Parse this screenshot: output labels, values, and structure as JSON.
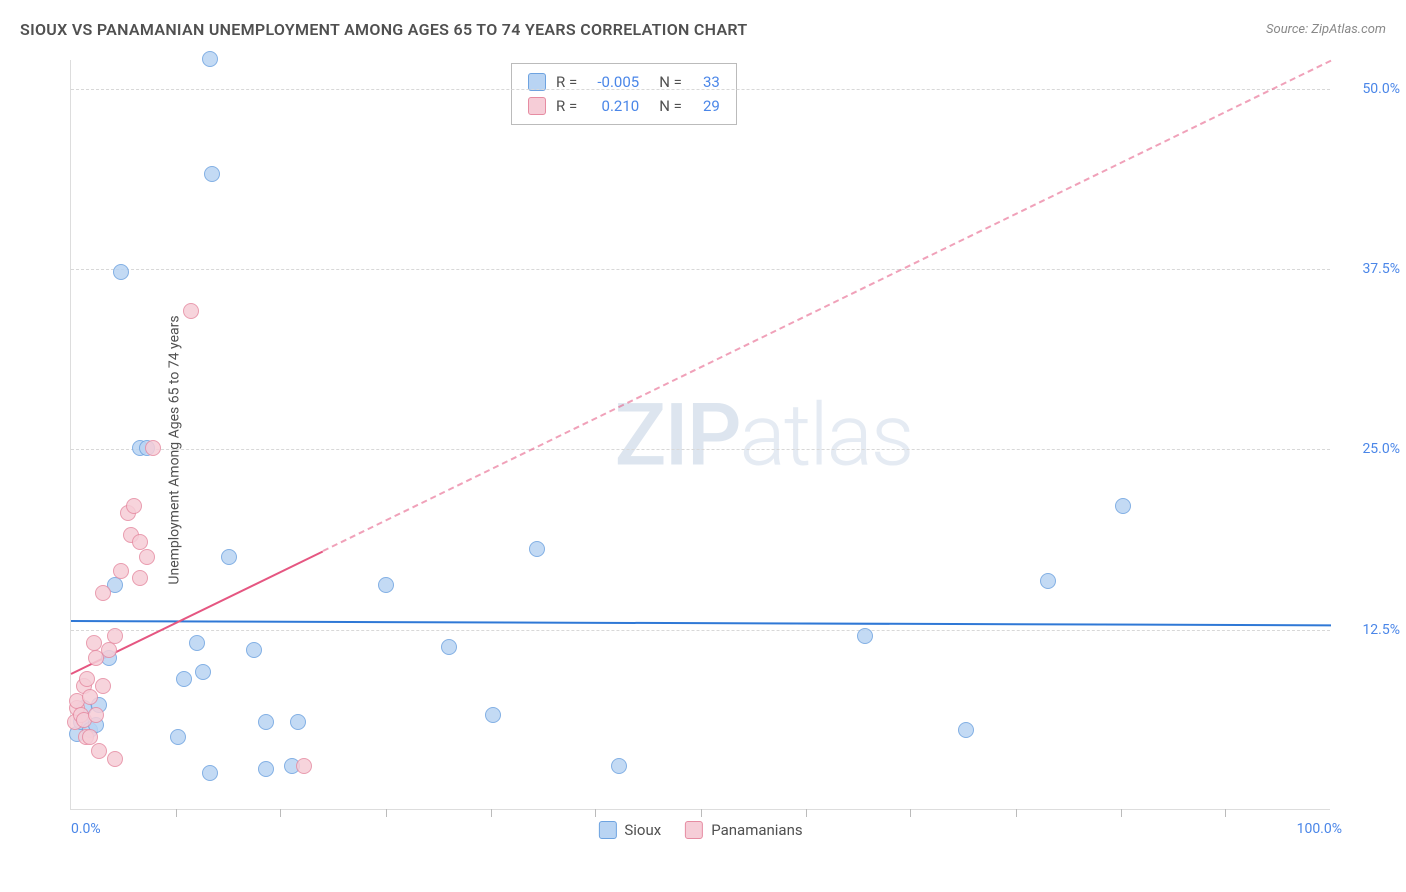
{
  "title": "SIOUX VS PANAMANIAN UNEMPLOYMENT AMONG AGES 65 TO 74 YEARS CORRELATION CHART",
  "source": "Source: ZipAtlas.com",
  "watermark_bold": "ZIP",
  "watermark_light": "atlas",
  "chart": {
    "type": "scatter",
    "ylabel": "Unemployment Among Ages 65 to 74 years",
    "xlim": [
      0,
      100
    ],
    "ylim": [
      0,
      52
    ],
    "y_ticks": [
      {
        "value": 12.5,
        "label": "12.5%"
      },
      {
        "value": 25.0,
        "label": "25.0%"
      },
      {
        "value": 37.5,
        "label": "37.5%"
      },
      {
        "value": 50.0,
        "label": "50.0%"
      }
    ],
    "x_ticks": [
      8.3,
      16.6,
      25,
      33.3,
      41.6,
      50,
      58.3,
      66.6,
      75,
      83.3,
      91.6
    ],
    "x_labels": [
      {
        "value": 0,
        "label": "0.0%",
        "anchor": "left"
      },
      {
        "value": 100,
        "label": "100.0%",
        "anchor": "right"
      }
    ],
    "background_color": "#ffffff",
    "grid_color": "#d8d8d8",
    "marker_radius": 8,
    "series": [
      {
        "name": "Sioux",
        "fill_color": "#b9d4f3",
        "stroke_color": "#6ea3e0",
        "r_value": "-0.005",
        "n_value": "33",
        "trend": {
          "color": "#2f78d6",
          "solid_from": [
            0,
            13.2
          ],
          "solid_to": [
            100,
            12.9
          ],
          "dashed_to": null
        },
        "points": [
          [
            0.5,
            5.2
          ],
          [
            0.8,
            6.0
          ],
          [
            1.0,
            7.0
          ],
          [
            1.5,
            5.5
          ],
          [
            2.0,
            5.8
          ],
          [
            2.2,
            7.2
          ],
          [
            3.0,
            10.5
          ],
          [
            3.5,
            15.5
          ],
          [
            4.0,
            37.2
          ],
          [
            5.5,
            25.0
          ],
          [
            6.0,
            25.0
          ],
          [
            8.5,
            5.0
          ],
          [
            9.0,
            9.0
          ],
          [
            10.0,
            11.5
          ],
          [
            10.5,
            9.5
          ],
          [
            11.0,
            52.0
          ],
          [
            11.0,
            2.5
          ],
          [
            11.2,
            44.0
          ],
          [
            12.5,
            17.5
          ],
          [
            14.5,
            11.0
          ],
          [
            15.5,
            2.8
          ],
          [
            15.5,
            6.0
          ],
          [
            17.5,
            3.0
          ],
          [
            18.0,
            6.0
          ],
          [
            25.0,
            15.5
          ],
          [
            30.0,
            11.2
          ],
          [
            33.5,
            6.5
          ],
          [
            37.0,
            18.0
          ],
          [
            43.5,
            3.0
          ],
          [
            63.0,
            12.0
          ],
          [
            71.0,
            5.5
          ],
          [
            77.5,
            15.8
          ],
          [
            83.5,
            21.0
          ]
        ]
      },
      {
        "name": "Panamanians",
        "fill_color": "#f6cdd7",
        "stroke_color": "#e68ca2",
        "r_value": "0.210",
        "n_value": "29",
        "trend": {
          "color": "#e55681",
          "solid_from": [
            0,
            9.5
          ],
          "solid_to": [
            20,
            18.0
          ],
          "dashed_to": [
            100,
            52.0
          ]
        },
        "points": [
          [
            0.3,
            6.0
          ],
          [
            0.5,
            7.0
          ],
          [
            0.5,
            7.5
          ],
          [
            0.8,
            6.5
          ],
          [
            1.0,
            8.5
          ],
          [
            1.0,
            6.2
          ],
          [
            1.2,
            5.0
          ],
          [
            1.3,
            9.0
          ],
          [
            1.5,
            5.0
          ],
          [
            1.5,
            7.8
          ],
          [
            1.8,
            11.5
          ],
          [
            2.0,
            10.5
          ],
          [
            2.0,
            6.5
          ],
          [
            2.2,
            4.0
          ],
          [
            2.5,
            15.0
          ],
          [
            2.5,
            8.5
          ],
          [
            3.0,
            11.0
          ],
          [
            3.5,
            3.5
          ],
          [
            3.5,
            12.0
          ],
          [
            4.0,
            16.5
          ],
          [
            4.5,
            20.5
          ],
          [
            4.8,
            19.0
          ],
          [
            5.0,
            21.0
          ],
          [
            5.5,
            16.0
          ],
          [
            5.5,
            18.5
          ],
          [
            6.0,
            17.5
          ],
          [
            6.5,
            25.0
          ],
          [
            9.5,
            34.5
          ],
          [
            18.5,
            3.0
          ]
        ]
      }
    ],
    "legend_bottom": [
      {
        "label": "Sioux",
        "fill_color": "#b9d4f3",
        "stroke_color": "#6ea3e0"
      },
      {
        "label": "Panamanians",
        "fill_color": "#f6cdd7",
        "stroke_color": "#e68ca2"
      }
    ]
  }
}
